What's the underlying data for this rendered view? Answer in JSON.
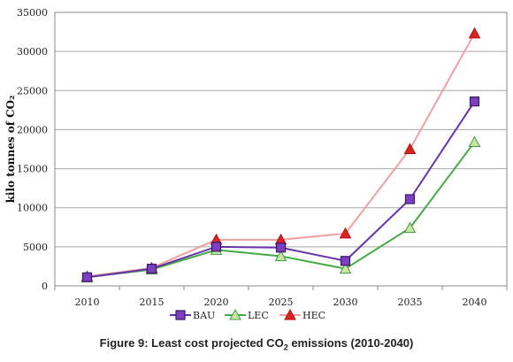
{
  "chart_data": {
    "type": "line",
    "categories": [
      "2010",
      "2015",
      "2020",
      "2025",
      "2030",
      "2035",
      "2040"
    ],
    "series": [
      {
        "name": "BAU",
        "values": [
          1100,
          2200,
          5000,
          4900,
          3200,
          11100,
          23600
        ],
        "color": "#6633aa",
        "marker_fill": "#7b3fc0",
        "marker": "square"
      },
      {
        "name": "LEC",
        "values": [
          1100,
          2100,
          4600,
          3800,
          2200,
          7400,
          18400
        ],
        "color": "#44aa44",
        "marker_fill": "#c8e6a0",
        "marker": "triangle"
      },
      {
        "name": "HEC",
        "values": [
          1200,
          2300,
          5900,
          5900,
          6700,
          17500,
          32300
        ],
        "color": "#f0a0a0",
        "marker_fill": "#dd2222",
        "marker": "triangle"
      }
    ],
    "ylabel": "kilo tonnes of CO₂",
    "xlabel": "",
    "ylim": [
      0,
      35000
    ],
    "yticks": [
      0,
      5000,
      10000,
      15000,
      20000,
      25000,
      30000,
      35000
    ],
    "grid": "horizontal",
    "legend_position": "bottom"
  },
  "caption": {
    "prefix": "Figure 9: Least cost projected CO",
    "subscript": "2",
    "suffix": " emissions (2010-2040)"
  }
}
